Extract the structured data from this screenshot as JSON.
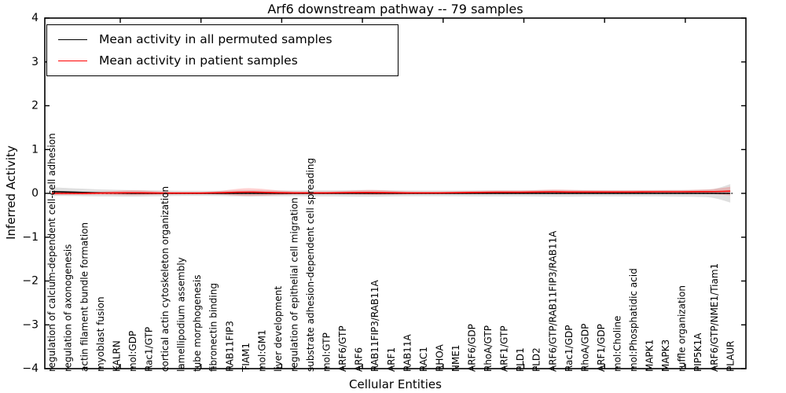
{
  "chart_data": {
    "type": "line",
    "title": "Arf6 downstream pathway -- 79 samples",
    "xlabel": "Cellular Entities",
    "ylabel": "Inferred Activity",
    "ylim": [
      -4,
      4
    ],
    "ytick_labels": [
      "4",
      "3",
      "2",
      "1",
      "0",
      "−1",
      "−2",
      "−3",
      "−4"
    ],
    "ytick_values": [
      4,
      3,
      2,
      1,
      0,
      -1,
      -2,
      -3,
      -4
    ],
    "grid": false,
    "legend_position": "upper left",
    "zero_reference_line": {
      "value": 0,
      "style": "dotted",
      "color": "#000000"
    },
    "categories": [
      "regulation of calcium-dependent cell-cell adhesion",
      "regulation of axonogenesis",
      "actin filament bundle formation",
      "myoblast fusion",
      "KALRN",
      "mol:GDP",
      "Rac1/GTP",
      "cortical actin cytoskeleton organization",
      "lamellipodium assembly",
      "tube morphogenesis",
      "fibronectin binding",
      "RAB11FIP3",
      "TIAM1",
      "mol:GM1",
      "liver development",
      "regulation of epithelial cell migration",
      "substrate adhesion-dependent cell spreading",
      "mol:GTP",
      "ARF6/GTP",
      "ARF6",
      "RAB11FIP3/RAB11A",
      "ARF1",
      "RAB11A",
      "RAC1",
      "RHOA",
      "NME1",
      "ARF6/GDP",
      "RhoA/GTP",
      "ARF1/GTP",
      "PLD1",
      "PLD2",
      "ARF6/GTP/RAB11FIP3/RAB11A",
      "Rac1/GDP",
      "RhoA/GDP",
      "ARF1/GDP",
      "mol:Choline",
      "mol:Phosphatidic acid",
      "MAPK1",
      "MAPK3",
      "ruffle organization",
      "PIP5K1A",
      "ARF6/GTP/NME1/Tiam1",
      "PLAUR"
    ],
    "series": [
      {
        "name": "Mean activity in all permuted samples",
        "color": "#000000",
        "style": "solid",
        "values": [
          0.04,
          0.03,
          0.02,
          0.01,
          0.005,
          0,
          0,
          0,
          0,
          0,
          0,
          0,
          0,
          0,
          0,
          0,
          0,
          0,
          0,
          0,
          0,
          0,
          0,
          0,
          0,
          0,
          0,
          0,
          0,
          0,
          0,
          0,
          0,
          0,
          0,
          0,
          0,
          0,
          0,
          0,
          0,
          0,
          0
        ],
        "band_half_width": [
          0.1,
          0.09,
          0.085,
          0.08,
          0.075,
          0.075,
          0.07,
          0.065,
          0.06,
          0.06,
          0.06,
          0.065,
          0.07,
          0.07,
          0.065,
          0.065,
          0.07,
          0.07,
          0.07,
          0.075,
          0.075,
          0.07,
          0.065,
          0.065,
          0.065,
          0.065,
          0.07,
          0.07,
          0.07,
          0.07,
          0.07,
          0.075,
          0.075,
          0.07,
          0.07,
          0.07,
          0.07,
          0.07,
          0.07,
          0.075,
          0.08,
          0.09,
          0.21
        ],
        "band_color": "#808080",
        "band_opacity": 0.25
      },
      {
        "name": "Mean activity in patient samples",
        "color": "#ff0000",
        "style": "solid",
        "values": [
          0,
          0,
          0,
          0.005,
          0.01,
          0.015,
          0.01,
          0.005,
          0.005,
          0.005,
          0.01,
          0.02,
          0.03,
          0.025,
          0.015,
          0.01,
          0.01,
          0.01,
          0.015,
          0.02,
          0.02,
          0.015,
          0.01,
          0.01,
          0.01,
          0.015,
          0.02,
          0.025,
          0.025,
          0.025,
          0.03,
          0.035,
          0.03,
          0.03,
          0.03,
          0.03,
          0.03,
          0.035,
          0.035,
          0.035,
          0.04,
          0.04,
          0.05
        ],
        "band_half_width": [
          0.03,
          0.03,
          0.03,
          0.03,
          0.045,
          0.06,
          0.045,
          0.03,
          0.025,
          0.025,
          0.03,
          0.06,
          0.095,
          0.08,
          0.05,
          0.035,
          0.03,
          0.03,
          0.035,
          0.05,
          0.06,
          0.045,
          0.03,
          0.025,
          0.025,
          0.03,
          0.035,
          0.04,
          0.04,
          0.04,
          0.045,
          0.055,
          0.05,
          0.045,
          0.04,
          0.04,
          0.04,
          0.04,
          0.04,
          0.04,
          0.045,
          0.055,
          0.1
        ],
        "band_color": "#ff0000",
        "band_opacity": 0.18
      }
    ]
  }
}
